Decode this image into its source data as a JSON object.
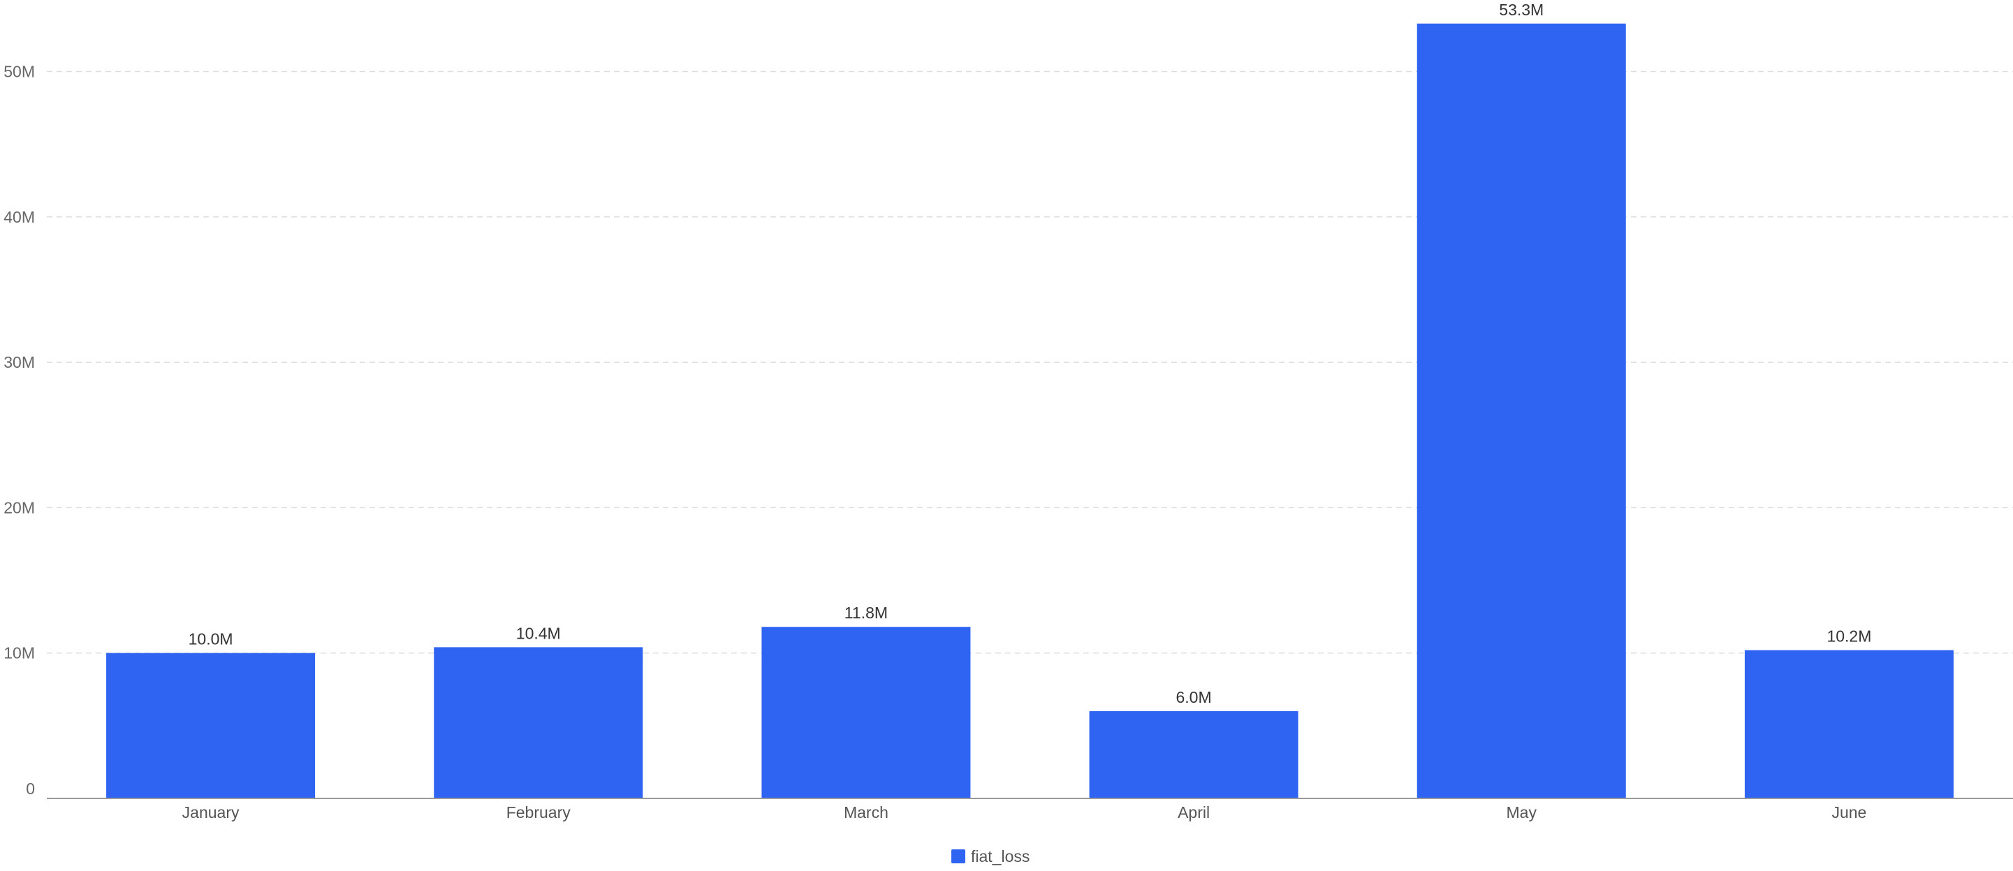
{
  "chart_data": {
    "type": "bar",
    "categories": [
      "January",
      "February",
      "March",
      "April",
      "May",
      "June"
    ],
    "series": [
      {
        "name": "fiat_loss",
        "values": [
          10000000,
          10400000,
          11800000,
          6000000,
          53300000,
          10200000
        ],
        "labels": [
          "10.0M",
          "10.4M",
          "11.8M",
          "6.0M",
          "53.3M",
          "10.2M"
        ],
        "color": "#2f64f2"
      }
    ],
    "title": "",
    "xlabel": "",
    "ylabel": "",
    "ylim": [
      0,
      55000000
    ],
    "yticks": [
      {
        "value": 0,
        "label": "0"
      },
      {
        "value": 10000000,
        "label": "10M"
      },
      {
        "value": 20000000,
        "label": "20M"
      },
      {
        "value": 30000000,
        "label": "30M"
      },
      {
        "value": 40000000,
        "label": "40M"
      },
      {
        "value": 50000000,
        "label": "50M"
      }
    ],
    "grid": true,
    "legend_position": "bottom-center"
  }
}
